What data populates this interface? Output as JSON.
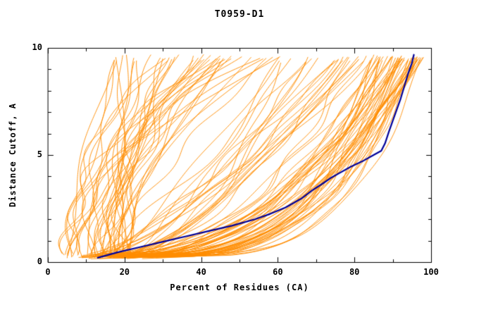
{
  "page": {
    "background": "#ffffff"
  },
  "chart_data": {
    "type": "line",
    "title": "T0959-D1",
    "xlabel": "Percent of Residues (CA)",
    "ylabel": "Distance Cutoff, A",
    "xlim": [
      0,
      100
    ],
    "ylim": [
      0,
      10
    ],
    "x_major_ticks": [
      0,
      20,
      40,
      60,
      80,
      100
    ],
    "x_minor_ticks": [
      10,
      30,
      50,
      70,
      90
    ],
    "y_major_ticks": [
      0,
      5,
      10
    ],
    "y_minor_ticks": [
      1,
      2,
      3,
      4,
      6,
      7,
      8,
      9
    ],
    "x_tick_labels": [
      "0",
      "20",
      "40",
      "60",
      "80",
      "100"
    ],
    "y_tick_labels": [
      "0",
      "5",
      "10"
    ],
    "grid": false,
    "legend": null,
    "colors": {
      "ensemble": "#ff8c00",
      "highlight": "#000099",
      "axis": "#000000",
      "background": "#ffffff",
      "text": "#000000"
    },
    "series": [
      {
        "name": "model-pool-curves",
        "color": "#ff8c00",
        "type": "generated-ensemble",
        "count": 115,
        "seed": 42,
        "y_min": 0.15,
        "y_max": 9.7,
        "groups": [
          {
            "weight": 0.3,
            "x_start": [
              4,
              20
            ],
            "x_end": [
              16,
              60
            ],
            "shape": [
              1.0,
              2.6
            ],
            "wiggle": [
              1.0,
              3.2
            ]
          },
          {
            "weight": 0.2,
            "x_start": [
              7,
              26
            ],
            "x_end": [
              60,
              85
            ],
            "shape": [
              0.45,
              0.85
            ],
            "wiggle": [
              0.8,
              2.4
            ]
          },
          {
            "weight": 0.5,
            "x_start": [
              8,
              30
            ],
            "x_end": [
              85,
              98
            ],
            "shape": [
              0.22,
              0.55
            ],
            "wiggle": [
              0.6,
              2.0
            ]
          }
        ]
      },
      {
        "name": "selected-model-curve",
        "color": "#000099",
        "type": "points",
        "points": [
          [
            13,
            0.2
          ],
          [
            18,
            0.45
          ],
          [
            24,
            0.7
          ],
          [
            30,
            0.95
          ],
          [
            36,
            1.2
          ],
          [
            42,
            1.45
          ],
          [
            48,
            1.7
          ],
          [
            54,
            2.0
          ],
          [
            58,
            2.25
          ],
          [
            62,
            2.55
          ],
          [
            66,
            2.95
          ],
          [
            69,
            3.35
          ],
          [
            72,
            3.7
          ],
          [
            74,
            3.95
          ],
          [
            76,
            4.15
          ],
          [
            79,
            4.45
          ],
          [
            82,
            4.7
          ],
          [
            85,
            5.0
          ],
          [
            87,
            5.2
          ],
          [
            88,
            5.55
          ],
          [
            89,
            6.1
          ],
          [
            90,
            6.6
          ],
          [
            91,
            7.1
          ],
          [
            92,
            7.6
          ],
          [
            93,
            8.2
          ],
          [
            94,
            8.8
          ],
          [
            95,
            9.3
          ],
          [
            95.5,
            9.68
          ]
        ]
      }
    ]
  }
}
